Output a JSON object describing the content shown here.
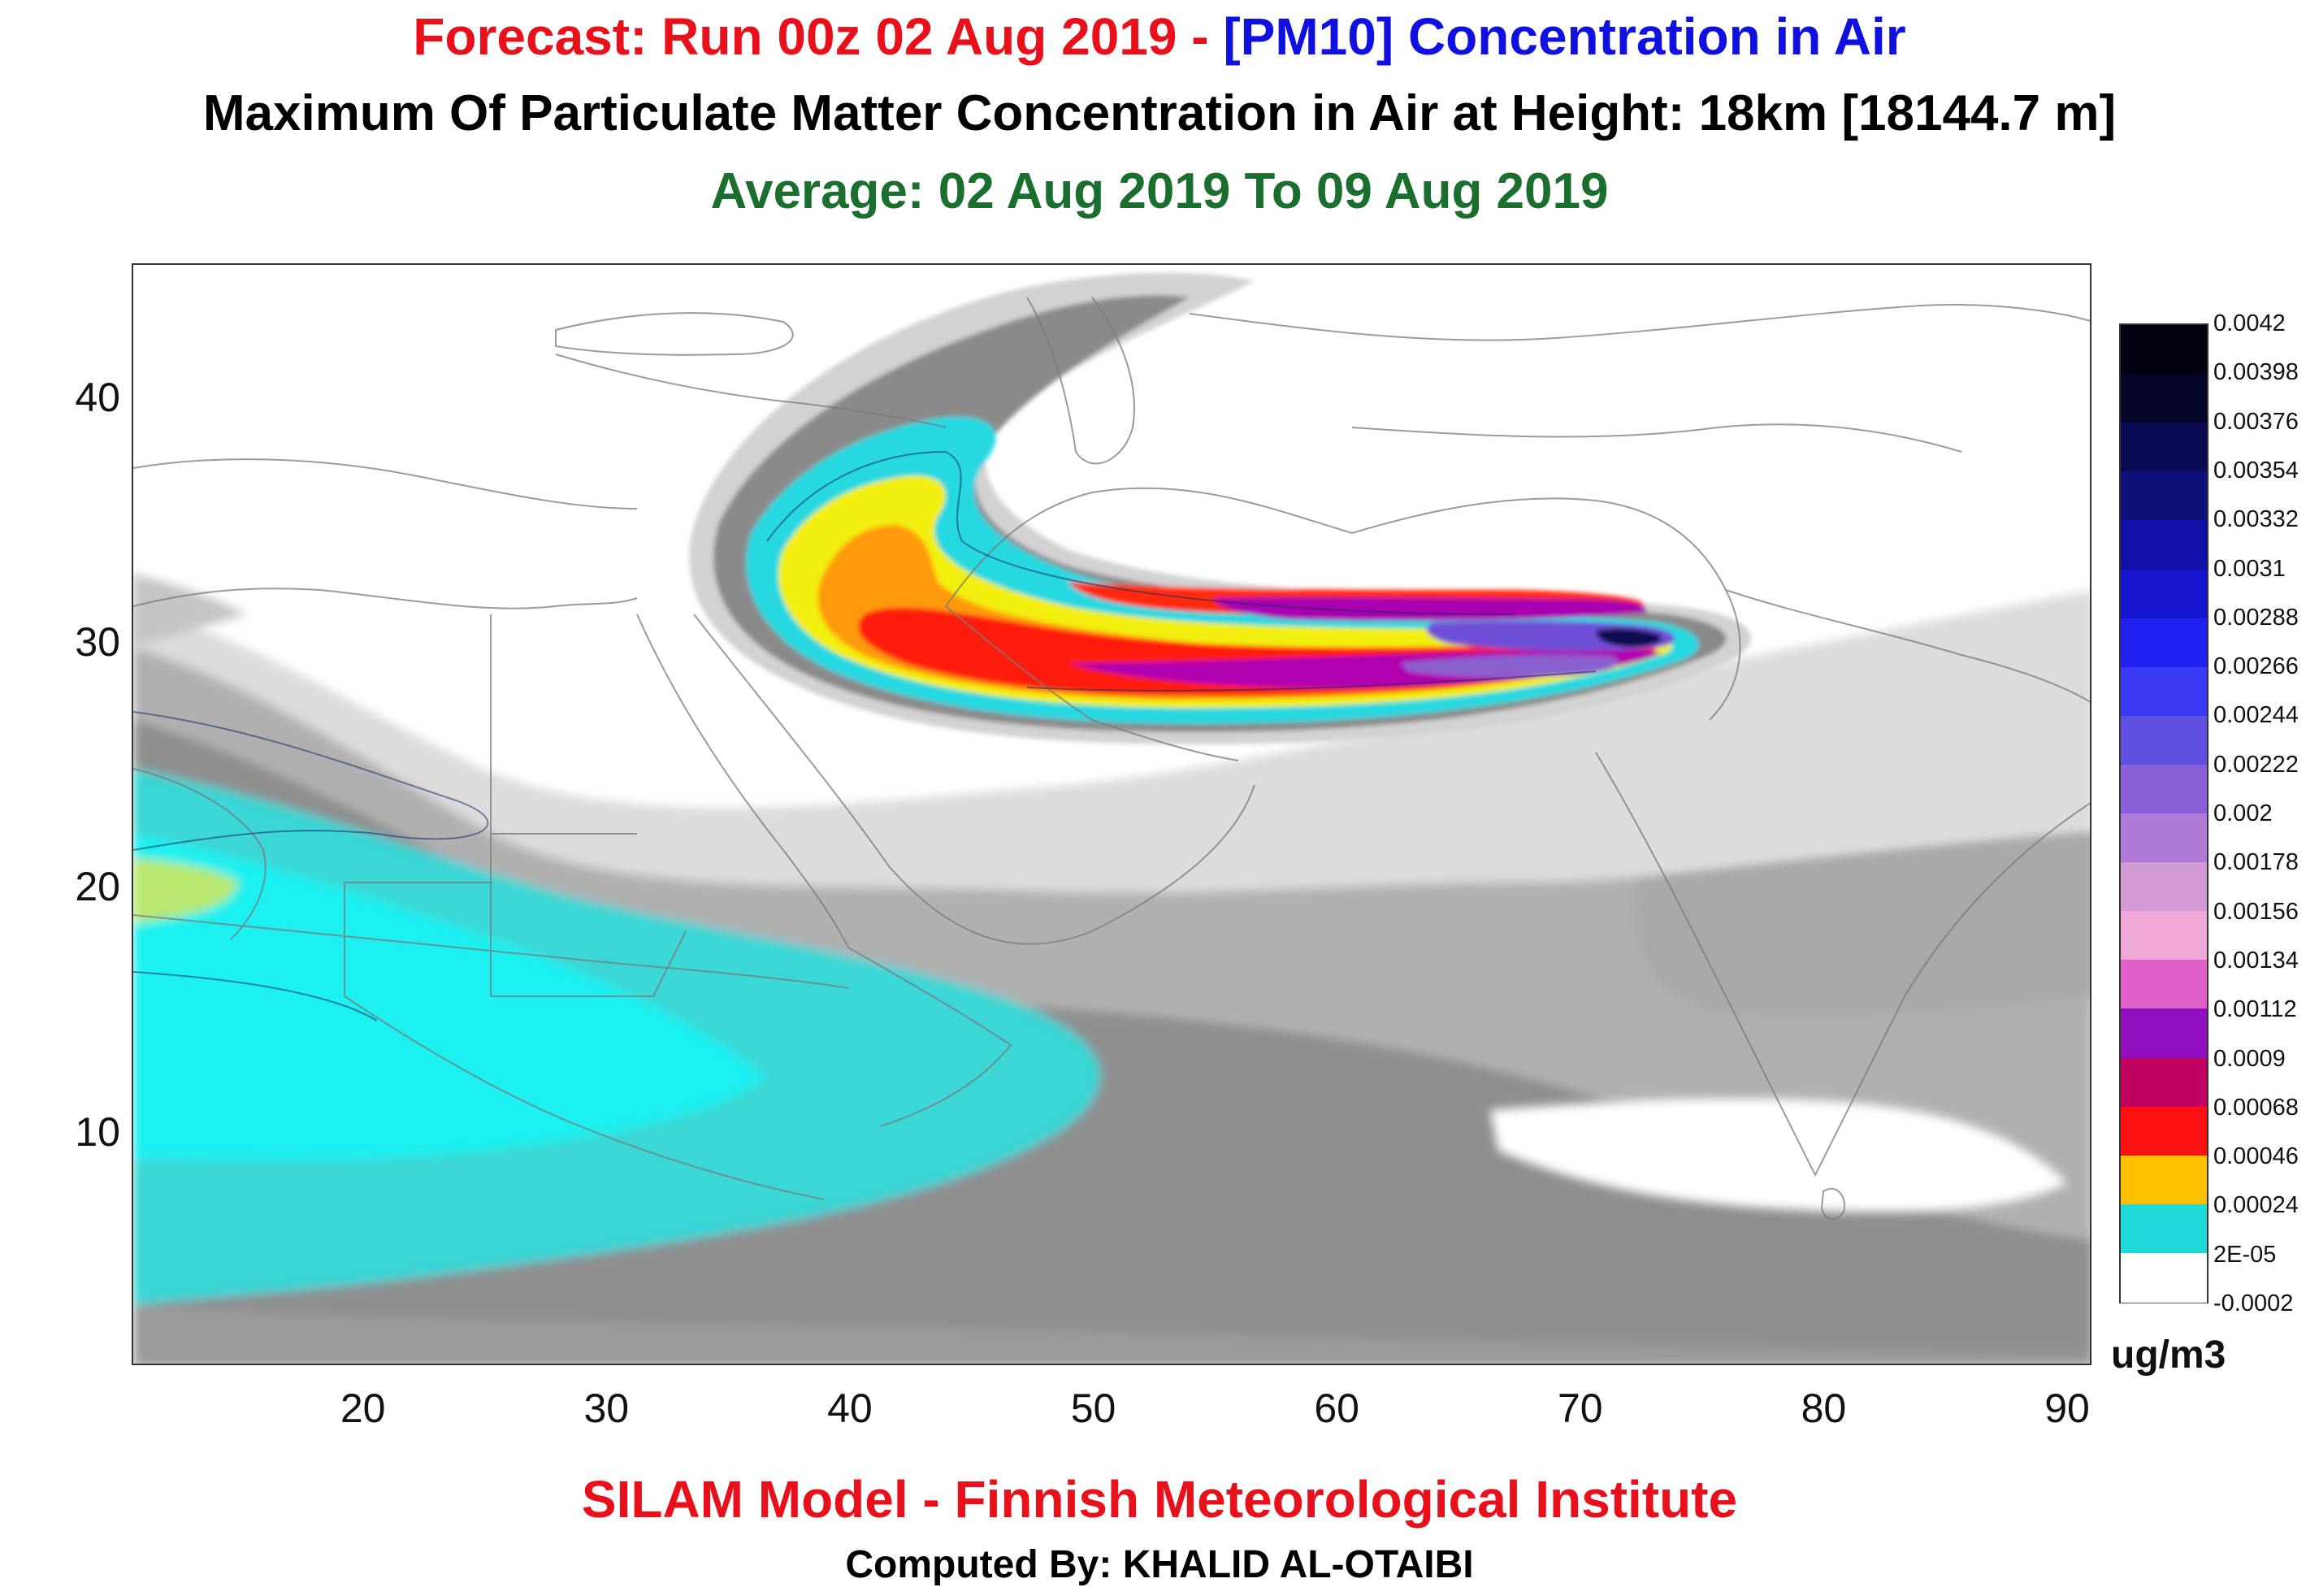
{
  "header": {
    "line1_part1": "Forecast: Run 00z 02 Aug 2019 - ",
    "line1_part2": "[PM10] Concentration in Air",
    "line1_color1": "#e8101a",
    "line1_color2": "#1010e0",
    "line2": "Maximum Of Particulate Matter Concentration in Air at Height: 18km [18144.7 m]",
    "line3": "Average: 02 Aug 2019 To 09 Aug 2019",
    "line3_color": "#1a6e2e"
  },
  "map": {
    "lon_range": [
      10.5,
      91
    ],
    "lat_range": [
      0.5,
      45.5
    ],
    "x_ticks": [
      "20",
      "30",
      "40",
      "50",
      "60",
      "70",
      "80",
      "90"
    ],
    "y_ticks": [
      "40",
      "30",
      "20",
      "10"
    ],
    "plume_colors": {
      "low_gray": "#d6d6d6",
      "mid_gray": "#a8a8a8",
      "dark_gray": "#8c8c8c",
      "teal": "#20e0e0",
      "yellow": "#f5f000",
      "orange": "#ff9a00",
      "red": "#ff1a10",
      "magenta": "#b000b0",
      "violet": "#7040d0",
      "navy": "#101050"
    }
  },
  "colorbar": {
    "unit": "ug/m3",
    "labels": [
      "0.0042",
      "0.00398",
      "0.00376",
      "0.00354",
      "0.00332",
      "0.0031",
      "0.00288",
      "0.00266",
      "0.00244",
      "0.00222",
      "0.002",
      "0.00178",
      "0.00156",
      "0.00134",
      "0.00112",
      "0.0009",
      "0.00068",
      "0.00046",
      "0.00024",
      "2E-05",
      "-0.0002"
    ],
    "colors": [
      "#000010",
      "#05052a",
      "#0a0a55",
      "#10107a",
      "#1010a8",
      "#1515d0",
      "#2020f0",
      "#3a3af5",
      "#6050e0",
      "#8a60d8",
      "#b07ad8",
      "#d49ad8",
      "#f0a8d8",
      "#e060c8",
      "#9010c0",
      "#c00060",
      "#ff1010",
      "#ffc000",
      "#20d8d8",
      "#ffffff"
    ]
  },
  "footer": {
    "line1": "SILAM Model - Finnish Meteorological Institute",
    "line1_color": "#e8101a",
    "line2": "Computed By: KHALID AL-OTAIBI"
  }
}
